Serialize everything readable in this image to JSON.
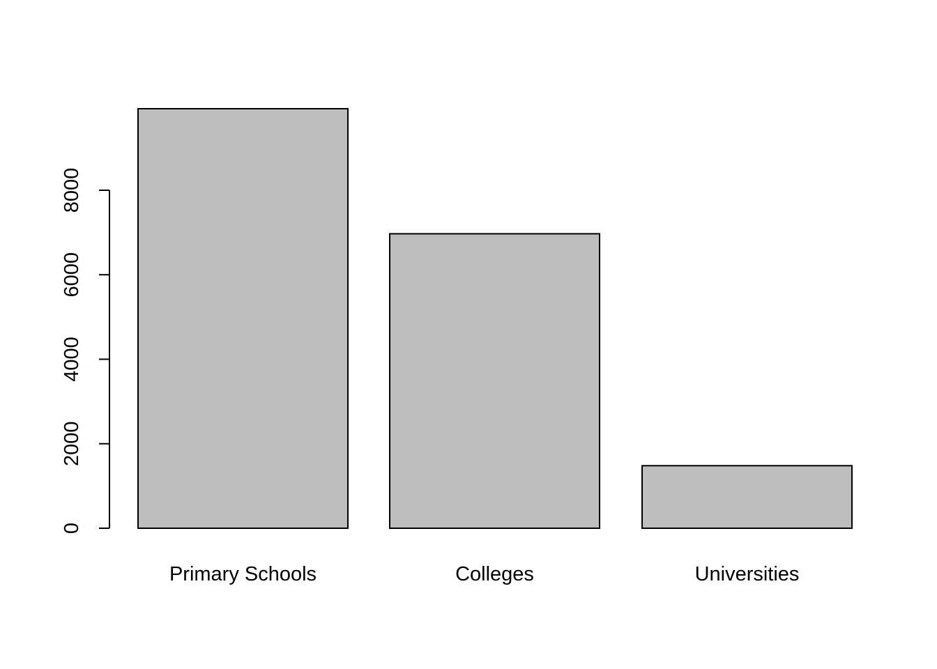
{
  "chart_data": {
    "type": "bar",
    "categories": [
      "Primary Schools",
      "Colleges",
      "Universities"
    ],
    "values": [
      9930,
      6970,
      1480
    ],
    "ylim": [
      0,
      9930
    ],
    "yticks": [
      0,
      2000,
      4000,
      6000,
      8000
    ],
    "bar_fill": "#bebebe",
    "bar_stroke": "#000000",
    "grid": false,
    "legend": "none"
  }
}
